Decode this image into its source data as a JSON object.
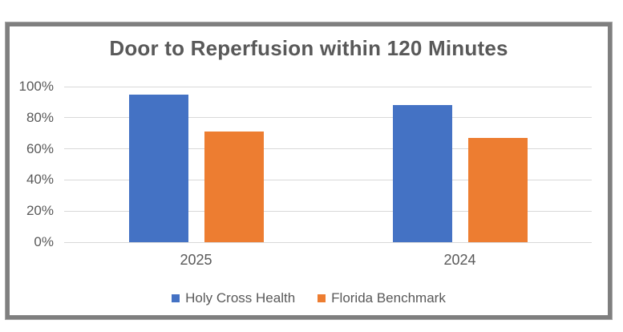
{
  "chart_data": {
    "type": "bar",
    "title": "Door to Reperfusion within 120 Minutes",
    "categories": [
      "2025",
      "2024"
    ],
    "series": [
      {
        "name": "Holy Cross Health",
        "color": "#4472C4",
        "values": [
          95,
          88
        ]
      },
      {
        "name": "Florida Benchmark",
        "color": "#ED7D31",
        "values": [
          71,
          67
        ]
      }
    ],
    "y_axis": {
      "min": 0,
      "max": 100,
      "step": 20,
      "tick_labels": [
        "0%",
        "20%",
        "40%",
        "60%",
        "80%",
        "100%"
      ]
    },
    "grid": "horizontal",
    "legend_position": "bottom",
    "colors": {
      "frame_border": "#7f7f7f",
      "gridline": "#d9d9d9",
      "text": "#595959",
      "background": "#ffffff"
    }
  }
}
